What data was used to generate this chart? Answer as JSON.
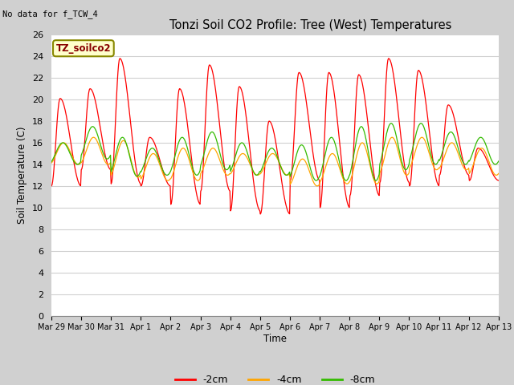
{
  "title": "Tonzi Soil CO2 Profile: Tree (West) Temperatures",
  "no_data_text": "No data for f_TCW_4",
  "ylabel": "Soil Temperature (C)",
  "xlabel": "Time",
  "legend_label": "TZ_soilco2",
  "ylim": [
    0,
    26
  ],
  "yticks": [
    0,
    2,
    4,
    6,
    8,
    10,
    12,
    14,
    16,
    18,
    20,
    22,
    24,
    26
  ],
  "color_2cm": "#ff0000",
  "color_4cm": "#ffa500",
  "color_8cm": "#33bb00",
  "x_tick_labels": [
    "Mar 29",
    "Mar 30",
    "Mar 31",
    "Apr 1",
    "Apr 2",
    "Apr 3",
    "Apr 4",
    "Apr 5",
    "Apr 6",
    "Apr 7",
    "Apr 8",
    "Apr 9",
    "Apr 10",
    "Apr 11",
    "Apr 12",
    "Apr 13"
  ],
  "num_days": 15,
  "points_per_day": 48,
  "daily_peaks_2cm": [
    20.1,
    21.0,
    23.8,
    16.5,
    21.0,
    23.2,
    21.2,
    18.0,
    22.5,
    22.5,
    22.3,
    23.8,
    22.7,
    19.5,
    15.5
  ],
  "daily_troughs_2cm": [
    12.0,
    13.5,
    12.2,
    12.0,
    10.3,
    11.5,
    9.7,
    9.4,
    12.5,
    10.0,
    11.1,
    12.3,
    12.0,
    13.0,
    12.5
  ],
  "daily_peaks_4cm": [
    16.0,
    16.5,
    16.2,
    15.0,
    15.5,
    15.5,
    15.0,
    15.0,
    14.5,
    15.0,
    16.0,
    16.5,
    16.5,
    16.0,
    15.5
  ],
  "daily_troughs_4cm": [
    14.0,
    14.0,
    12.8,
    12.5,
    12.5,
    13.0,
    13.0,
    13.0,
    12.0,
    12.2,
    12.2,
    13.0,
    13.5,
    13.5,
    13.0
  ],
  "daily_peaks_8cm": [
    16.0,
    17.5,
    16.5,
    15.5,
    16.5,
    17.0,
    16.0,
    15.5,
    15.8,
    16.5,
    17.5,
    17.8,
    17.8,
    17.0,
    16.5
  ],
  "daily_troughs_8cm": [
    14.0,
    14.5,
    12.9,
    13.0,
    13.0,
    13.5,
    13.0,
    13.0,
    12.5,
    12.5,
    12.5,
    13.5,
    14.0,
    14.0,
    14.0
  ]
}
